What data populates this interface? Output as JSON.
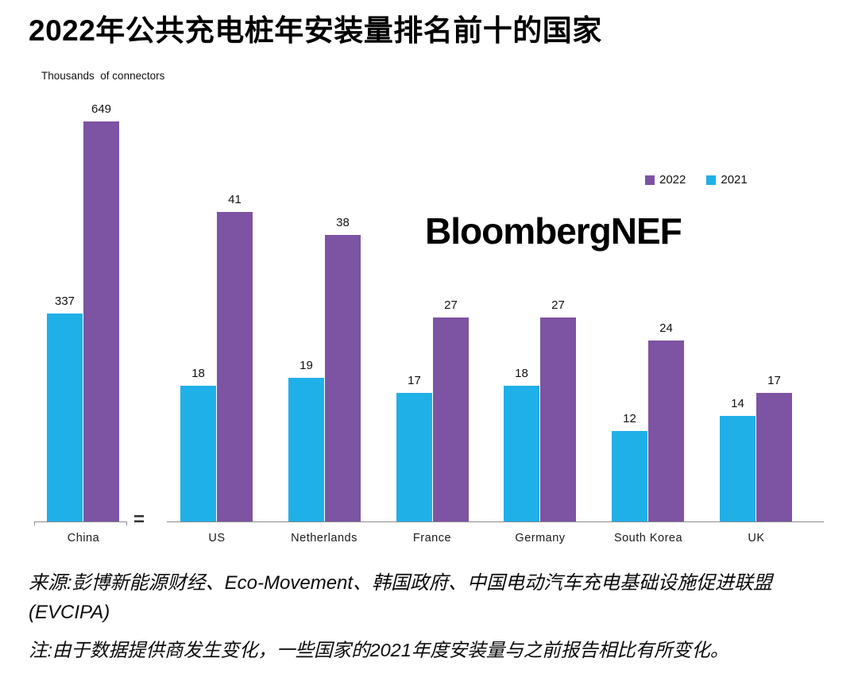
{
  "title": "2022年公共充电桩年安装量排名前十的国家",
  "unit_label": "Thousands  of connectors",
  "watermark": "BloombergNEF",
  "legend": {
    "items": [
      {
        "label": "2022",
        "color": "#7d53a3"
      },
      {
        "label": "2021",
        "color": "#1fb0e8"
      }
    ]
  },
  "axis_break_symbol": "=",
  "source": "来源:彭博新能源财经、Eco-Movement、韩国政府、中国电动汽车充电基础设施促进联盟(EVCIPA)",
  "note": "注:由于数据提供商发生变化，一些国家的2021年度安装量与之前报告相比有所变化。",
  "chart_data": {
    "type": "bar",
    "categories": [
      "China",
      "US",
      "Netherlands",
      "France",
      "Germany",
      "South Korea",
      "UK"
    ],
    "series": [
      {
        "name": "2021",
        "color": "#1fb0e8",
        "values": [
          337,
          18,
          19,
          17,
          18,
          12,
          14
        ]
      },
      {
        "name": "2022",
        "color": "#7d53a3",
        "values": [
          649,
          41,
          38,
          27,
          27,
          24,
          17
        ]
      }
    ],
    "title": "2022年公共充电桩年安装量排名前十的国家",
    "ylabel": "Thousands of connectors",
    "axis_break": "China plotted on a separate smaller scale; axis break symbol shown between China and the other countries",
    "legend_position": "top-right",
    "grid": false,
    "data_labels": true
  }
}
